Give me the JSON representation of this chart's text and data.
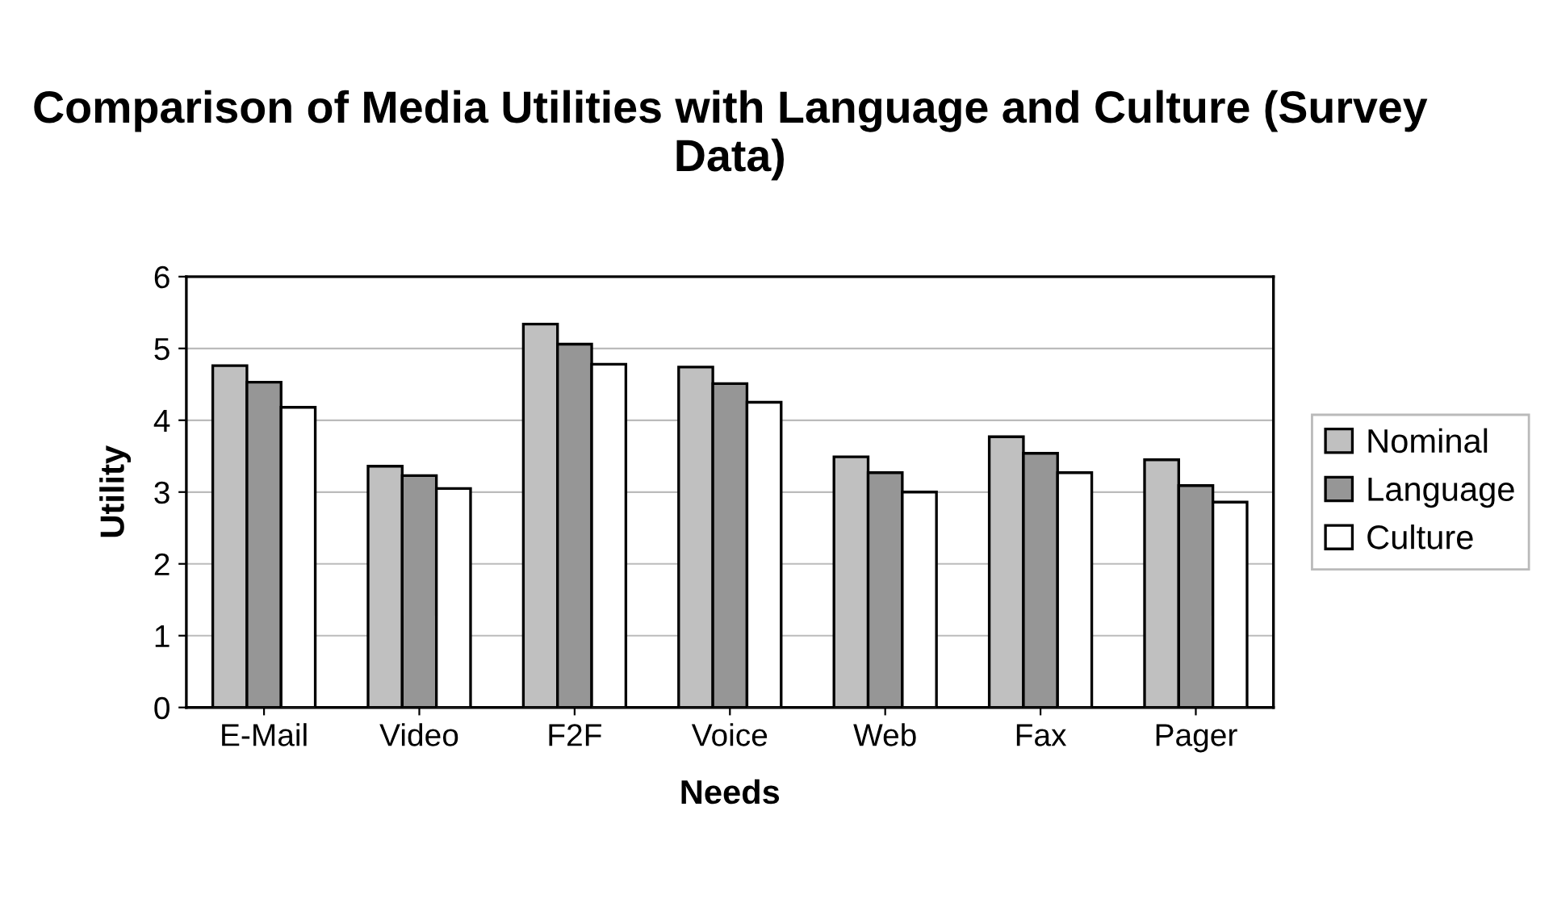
{
  "chart_data": {
    "type": "bar",
    "title": "Comparison of Media Utilities with Language and Culture (Survey Data)",
    "xlabel": "Needs",
    "ylabel": "Utility",
    "categories": [
      "E-Mail",
      "Video",
      "F2F",
      "Voice",
      "Web",
      "Fax",
      "Pager"
    ],
    "series": [
      {
        "name": "Nominal",
        "color": "#c0c0c0",
        "values": [
          4.76,
          3.36,
          5.34,
          4.74,
          3.49,
          3.77,
          3.45
        ]
      },
      {
        "name": "Language",
        "color": "#969696",
        "values": [
          4.53,
          3.23,
          5.06,
          4.51,
          3.27,
          3.54,
          3.09
        ]
      },
      {
        "name": "Culture",
        "color": "#ffffff",
        "values": [
          4.18,
          3.05,
          4.78,
          4.25,
          3.0,
          3.27,
          2.86
        ]
      }
    ],
    "ylim": [
      0,
      6
    ],
    "yticks": [
      0,
      1,
      2,
      3,
      4,
      5,
      6
    ],
    "grid": "y",
    "legend": "right"
  }
}
